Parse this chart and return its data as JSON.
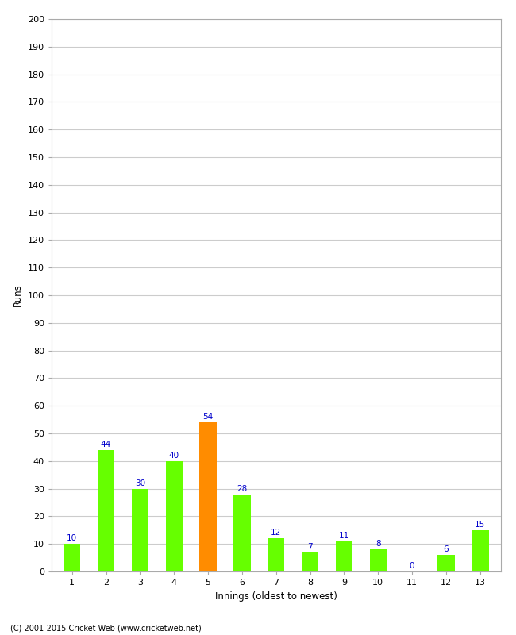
{
  "xlabel": "Innings (oldest to newest)",
  "ylabel": "Runs",
  "categories": [
    "1",
    "2",
    "3",
    "4",
    "5",
    "6",
    "7",
    "8",
    "9",
    "10",
    "11",
    "12",
    "13"
  ],
  "values": [
    10,
    44,
    30,
    40,
    54,
    28,
    12,
    7,
    11,
    8,
    0,
    6,
    15
  ],
  "bar_colors": [
    "#66ff00",
    "#66ff00",
    "#66ff00",
    "#66ff00",
    "#ff8c00",
    "#66ff00",
    "#66ff00",
    "#66ff00",
    "#66ff00",
    "#66ff00",
    "#66ff00",
    "#66ff00",
    "#66ff00"
  ],
  "ylim": [
    0,
    200
  ],
  "yticks": [
    0,
    10,
    20,
    30,
    40,
    50,
    60,
    70,
    80,
    90,
    100,
    110,
    120,
    130,
    140,
    150,
    160,
    170,
    180,
    190,
    200
  ],
  "label_color": "#0000cc",
  "grid_color": "#cccccc",
  "background_color": "#ffffff",
  "border_color": "#aaaaaa",
  "footer": "(C) 2001-2015 Cricket Web (www.cricketweb.net)"
}
